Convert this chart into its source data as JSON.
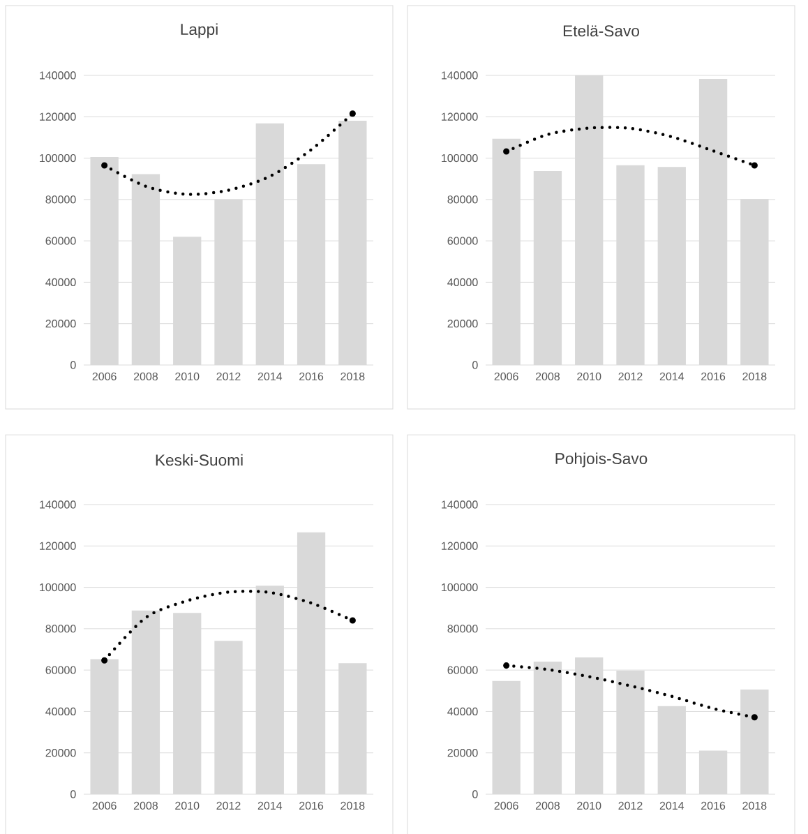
{
  "chart_data": [
    {
      "type": "bar",
      "title": "Lappi",
      "categories": [
        "2006",
        "2008",
        "2010",
        "2012",
        "2014",
        "2016",
        "2018"
      ],
      "series": [
        {
          "color": "#d9d9d9",
          "values": [
            100500,
            92300,
            62000,
            80000,
            116800,
            97100,
            118100
          ]
        },
        {
          "type": "line",
          "color": "#000000",
          "line_style": "dotted",
          "values": [
            96500,
            86400,
            82500,
            84500,
            91200,
            104100,
            121500
          ]
        }
      ],
      "ylim": [
        0,
        140000
      ],
      "yticks": [
        0,
        20000,
        40000,
        60000,
        80000,
        100000,
        120000,
        140000
      ],
      "grid": "y"
    },
    {
      "type": "bar",
      "title": "Etelä-Savo",
      "categories": [
        "2006",
        "2008",
        "2010",
        "2012",
        "2014",
        "2016",
        "2018"
      ],
      "series": [
        {
          "color": "#d9d9d9",
          "values": [
            109400,
            93800,
            140000,
            96600,
            95700,
            138300,
            80200
          ]
        },
        {
          "type": "line",
          "color": "#000000",
          "line_style": "dotted",
          "values": [
            103200,
            111400,
            114500,
            114400,
            110300,
            103500,
            96500
          ]
        }
      ],
      "ylim": [
        0,
        140000
      ],
      "yticks": [
        0,
        20000,
        40000,
        60000,
        80000,
        100000,
        120000,
        140000
      ],
      "grid": "y"
    },
    {
      "type": "bar",
      "title": "Keski-Suomi",
      "categories": [
        "2006",
        "2008",
        "2010",
        "2012",
        "2014",
        "2016",
        "2018"
      ],
      "series": [
        {
          "color": "#d9d9d9",
          "values": [
            65300,
            88800,
            87600,
            74100,
            100800,
            126600,
            63300
          ]
        },
        {
          "type": "line",
          "color": "#000000",
          "line_style": "dotted",
          "values": [
            64700,
            85400,
            93500,
            97700,
            97500,
            92400,
            84000
          ]
        }
      ],
      "ylim": [
        0,
        140000
      ],
      "yticks": [
        0,
        20000,
        40000,
        60000,
        80000,
        100000,
        120000,
        140000
      ],
      "grid": "y"
    },
    {
      "type": "bar",
      "title": "Pohjois-Savo",
      "categories": [
        "2006",
        "2008",
        "2010",
        "2012",
        "2014",
        "2016",
        "2018"
      ],
      "series": [
        {
          "color": "#d9d9d9",
          "values": [
            54700,
            64100,
            66100,
            59700,
            42600,
            21100,
            50600
          ]
        },
        {
          "type": "line",
          "color": "#000000",
          "line_style": "dotted",
          "values": [
            62200,
            60300,
            56800,
            52400,
            47300,
            41400,
            37200
          ]
        }
      ],
      "ylim": [
        0,
        140000
      ],
      "yticks": [
        0,
        20000,
        40000,
        60000,
        80000,
        100000,
        120000,
        140000
      ],
      "grid": "y"
    }
  ]
}
